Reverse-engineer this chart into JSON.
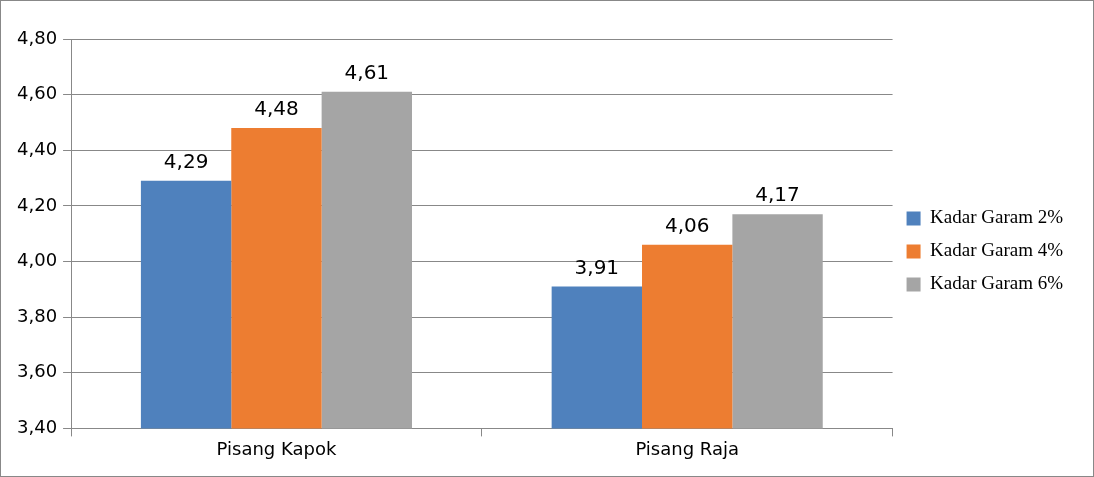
{
  "chart_data": {
    "type": "bar",
    "categories": [
      "Pisang Kapok",
      "Pisang Raja"
    ],
    "series": [
      {
        "name": "Kadar Garam 2%",
        "color": "#4f81bd",
        "values": [
          4.29,
          3.91
        ],
        "value_labels": [
          "4,29",
          "3,91"
        ]
      },
      {
        "name": "Kadar Garam 4%",
        "color": "#ed7d31",
        "values": [
          4.48,
          4.06
        ],
        "value_labels": [
          "4,48",
          "4,06"
        ]
      },
      {
        "name": "Kadar Garam 6%",
        "color": "#a5a5a5",
        "values": [
          4.61,
          4.17
        ],
        "value_labels": [
          "4,61",
          "4,17"
        ]
      }
    ],
    "ylim": [
      3.4,
      4.8
    ],
    "yticks": [
      {
        "value": 3.4,
        "label": "3,40"
      },
      {
        "value": 3.6,
        "label": "3,60"
      },
      {
        "value": 3.8,
        "label": "3,80"
      },
      {
        "value": 4.0,
        "label": "4,00"
      },
      {
        "value": 4.2,
        "label": "4,20"
      },
      {
        "value": 4.4,
        "label": "4,40"
      },
      {
        "value": 4.6,
        "label": "4,60"
      },
      {
        "value": 4.8,
        "label": "4,80"
      }
    ],
    "grid": "y",
    "legend": "right"
  }
}
